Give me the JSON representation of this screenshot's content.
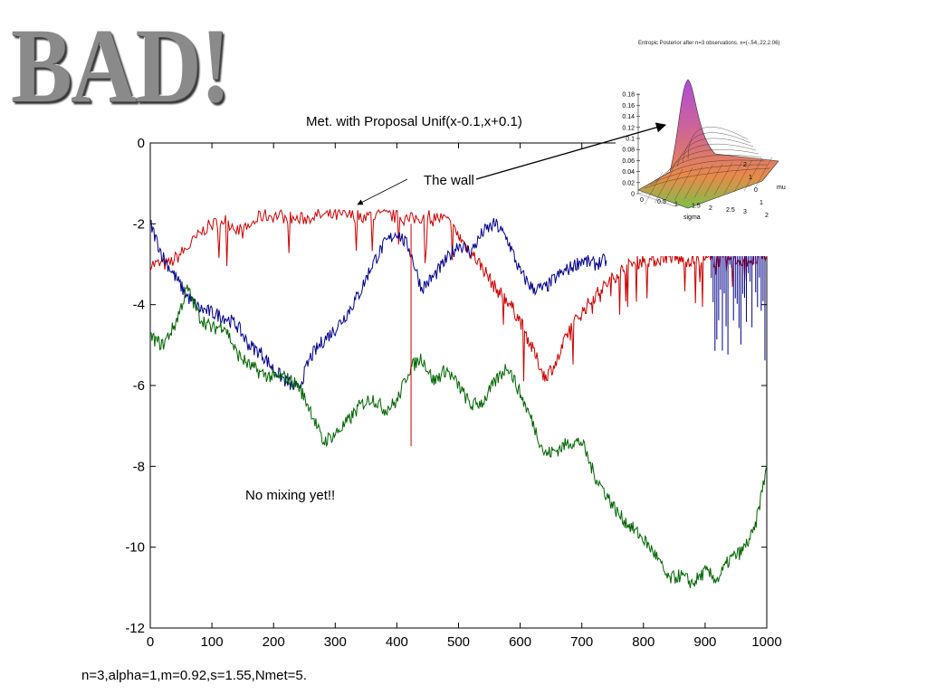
{
  "banner": "BAD!",
  "footer": "n=3,alpha=1,m=0.92,s=1.55,Nmet=5.",
  "annotations": {
    "wall": "The wall",
    "mixing": "No mixing yet!!"
  },
  "inset": {
    "title": "Entropic Posterior after n=3 observations. x=(-.54,.22,2.06)",
    "xlabel": "sigma",
    "ylabel": "mu",
    "zticks": [
      "0",
      "0.02",
      "0.04",
      "0.06",
      "0.08",
      "0.1",
      "0.12",
      "0.14",
      "0.16",
      "0.18"
    ],
    "xticks": [
      "0",
      "0.5",
      "1",
      "1.5",
      "2",
      "2.5",
      "3"
    ],
    "yticks": [
      "-2",
      "-1",
      "0",
      "1",
      "2"
    ]
  },
  "chart_data": {
    "type": "line",
    "title": "Met. with Proposal Unif(x-0.1,x+0.1)",
    "xlabel": "",
    "ylabel": "",
    "xlim": [
      0,
      1000
    ],
    "ylim": [
      -12,
      0
    ],
    "xticks": [
      "0",
      "100",
      "200",
      "300",
      "400",
      "500",
      "600",
      "700",
      "800",
      "900",
      "1000"
    ],
    "yticks": [
      "0",
      "-2",
      "-4",
      "-6",
      "-8",
      "-10",
      "-12"
    ],
    "grid": false,
    "series": [
      {
        "color": "#cc0000",
        "x": [
          0,
          30,
          60,
          90,
          120,
          150,
          180,
          210,
          240,
          270,
          300,
          330,
          360,
          390,
          420,
          450,
          480,
          500,
          520,
          540,
          560,
          580,
          600,
          620,
          640,
          660,
          680,
          700,
          720,
          740,
          760,
          780,
          800,
          820,
          840,
          860,
          880,
          900,
          920,
          940,
          960,
          980,
          1000
        ],
        "y": [
          -3.0,
          -3.0,
          -2.6,
          -2.1,
          -1.9,
          -2.2,
          -1.8,
          -1.8,
          -1.9,
          -1.8,
          -1.8,
          -1.8,
          -1.8,
          -1.8,
          -1.9,
          -1.8,
          -1.9,
          -2.3,
          -2.7,
          -3.1,
          -3.6,
          -3.9,
          -4.4,
          -5.1,
          -5.8,
          -5.4,
          -4.6,
          -4.2,
          -3.8,
          -3.5,
          -3.2,
          -3.0,
          -2.9,
          -2.9,
          -2.8,
          -2.9,
          -2.9,
          -2.9,
          -2.9,
          -2.9,
          -2.9,
          -2.9,
          -2.8
        ]
      },
      {
        "color": "#00008b",
        "x": [
          0,
          20,
          40,
          60,
          80,
          100,
          120,
          140,
          160,
          180,
          200,
          220,
          240,
          260,
          280,
          300,
          320,
          340,
          360,
          380,
          400,
          420,
          440,
          460,
          480,
          500,
          520,
          540,
          560,
          580,
          600,
          620,
          640,
          660,
          680,
          700,
          720,
          740
        ],
        "y": [
          -2.0,
          -2.8,
          -3.3,
          -3.8,
          -4.1,
          -4.2,
          -4.3,
          -4.5,
          -5.0,
          -5.2,
          -5.6,
          -5.9,
          -6.1,
          -5.3,
          -4.9,
          -4.6,
          -4.2,
          -3.7,
          -3.0,
          -2.5,
          -2.2,
          -2.6,
          -3.6,
          -3.3,
          -2.9,
          -2.5,
          -2.7,
          -2.2,
          -2.0,
          -2.4,
          -3.2,
          -3.6,
          -3.6,
          -3.3,
          -3.1,
          -2.9,
          -3.0,
          -2.9
        ]
      },
      {
        "color": "#006400",
        "x": [
          0,
          20,
          40,
          60,
          80,
          100,
          120,
          140,
          160,
          180,
          200,
          220,
          240,
          260,
          280,
          300,
          320,
          340,
          360,
          380,
          400,
          420,
          440,
          460,
          480,
          500,
          520,
          540,
          560,
          580,
          600,
          620,
          640,
          660,
          680,
          700,
          720,
          740,
          760,
          780,
          800,
          820,
          840,
          860,
          880,
          900,
          920,
          940,
          960,
          980,
          1000
        ],
        "y": [
          -4.8,
          -5.0,
          -4.5,
          -3.6,
          -4.3,
          -4.6,
          -4.5,
          -5.2,
          -5.5,
          -5.7,
          -5.8,
          -5.8,
          -6.0,
          -6.6,
          -7.4,
          -7.2,
          -6.9,
          -6.5,
          -6.3,
          -6.6,
          -6.4,
          -5.6,
          -5.3,
          -5.9,
          -5.6,
          -6.0,
          -6.5,
          -6.4,
          -5.9,
          -5.5,
          -6.2,
          -6.9,
          -7.7,
          -7.6,
          -7.4,
          -7.4,
          -8.2,
          -8.7,
          -9.2,
          -9.5,
          -9.8,
          -10.2,
          -10.8,
          -10.7,
          -10.9,
          -10.6,
          -10.8,
          -10.3,
          -10.1,
          -9.6,
          -8.0
        ]
      }
    ]
  }
}
